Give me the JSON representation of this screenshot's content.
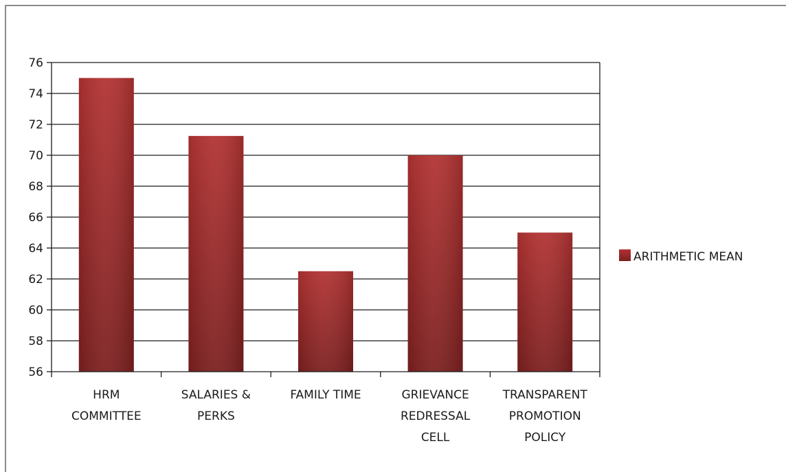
{
  "chart_data": {
    "type": "bar",
    "categories": [
      [
        "HRM",
        "COMMITTEE"
      ],
      [
        "SALARIES &",
        "PERKS"
      ],
      [
        "FAMILY TIME"
      ],
      [
        "GRIEVANCE",
        "REDRESSAL",
        "CELL"
      ],
      [
        "TRANSPARENT",
        "PROMOTION",
        "POLICY"
      ]
    ],
    "series": [
      {
        "name": "ARITHMETIC MEAN",
        "values": [
          75,
          71.25,
          62.5,
          70,
          65
        ],
        "color": "#a52a2a"
      }
    ],
    "ylim": [
      56,
      76
    ],
    "yticks": [
      56,
      58,
      60,
      62,
      64,
      66,
      68,
      70,
      72,
      74,
      76
    ],
    "grid": true,
    "legend": "right",
    "title": "",
    "xlabel": "",
    "ylabel": ""
  }
}
